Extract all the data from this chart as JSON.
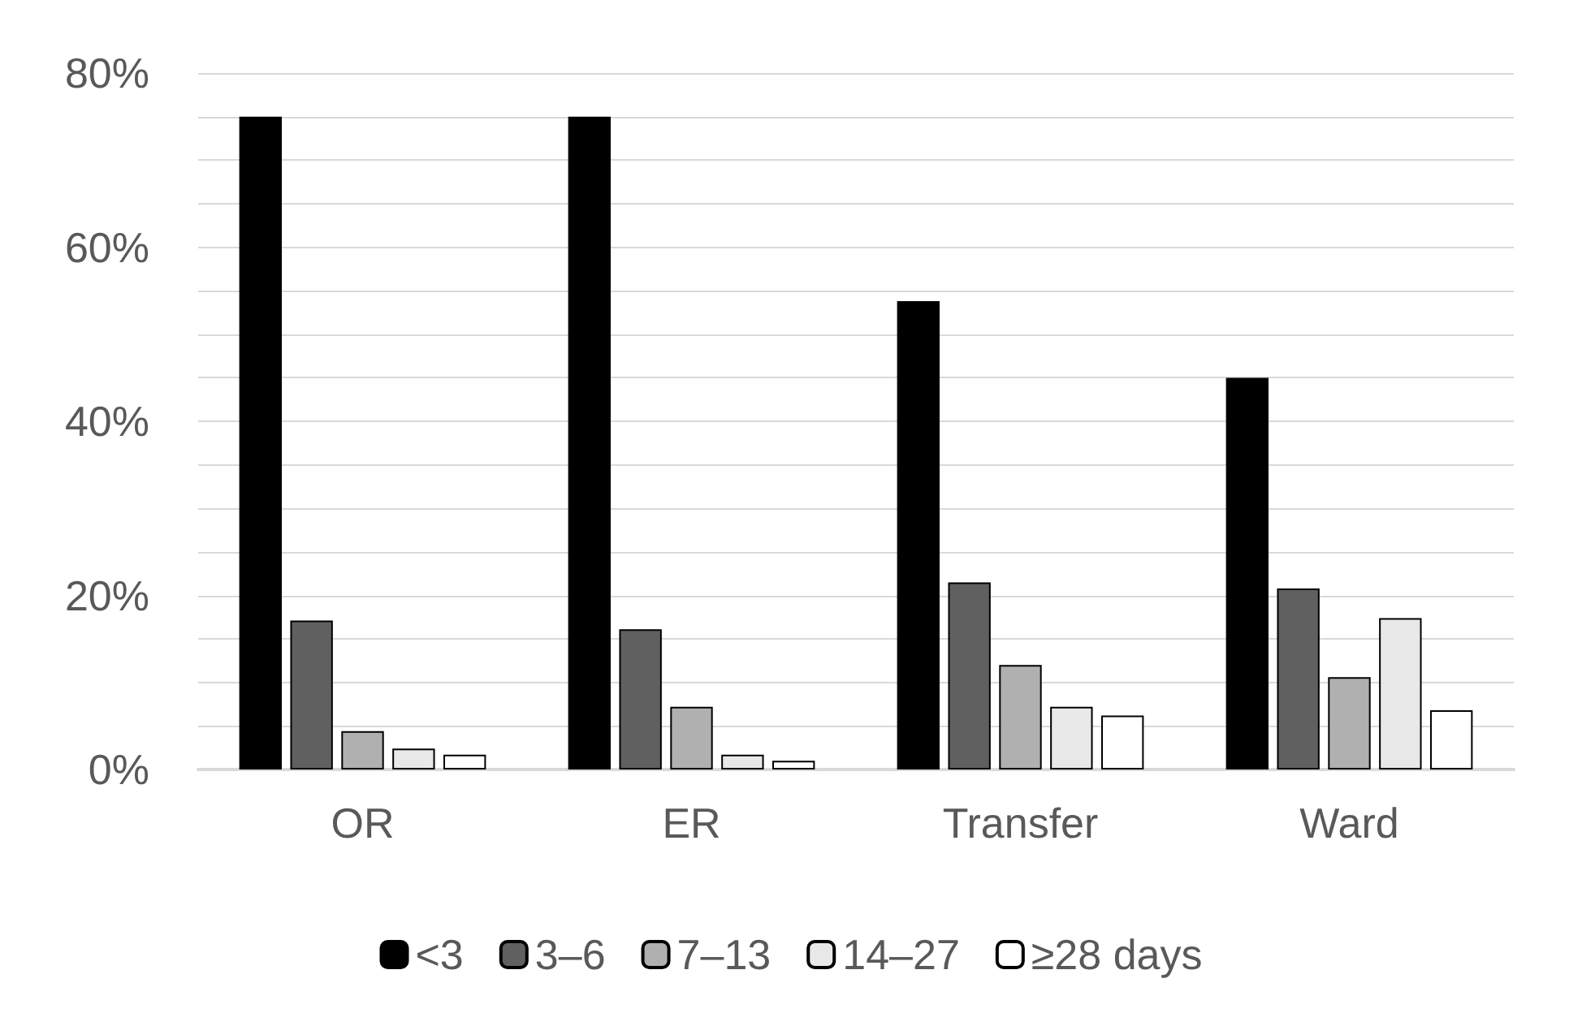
{
  "chart_data": {
    "type": "bar",
    "categories": [
      "OR",
      "ER",
      "Transfer",
      "Ward"
    ],
    "series": [
      {
        "name": "<3",
        "color": "#000000",
        "values": [
          75,
          75,
          53.8,
          45
        ]
      },
      {
        "name": "3–6",
        "color": "#606060",
        "values": [
          17.1,
          16.1,
          21.5,
          20.8
        ]
      },
      {
        "name": "7–13",
        "color": "#b0b0b0",
        "values": [
          4.4,
          7.2,
          12,
          10.6
        ]
      },
      {
        "name": "14–27",
        "color": "#e8e8e8",
        "values": [
          2.4,
          1.7,
          7.2,
          17.4
        ]
      },
      {
        "name": "≥28 days",
        "color": "#ffffff",
        "values": [
          1.7,
          1,
          6.2,
          6.8
        ]
      }
    ],
    "ylim": [
      0,
      80
    ],
    "yticks": [
      {
        "value": 0,
        "label": "0%"
      },
      {
        "value": 5,
        "label": null
      },
      {
        "value": 10,
        "label": null
      },
      {
        "value": 15,
        "label": null
      },
      {
        "value": 20,
        "label": "20%"
      },
      {
        "value": 25,
        "label": null
      },
      {
        "value": 30,
        "label": null
      },
      {
        "value": 35,
        "label": null
      },
      {
        "value": 40,
        "label": "40%"
      },
      {
        "value": 45,
        "label": null
      },
      {
        "value": 50,
        "label": null
      },
      {
        "value": 55,
        "label": null
      },
      {
        "value": 60,
        "label": "60%"
      },
      {
        "value": 65,
        "label": null
      },
      {
        "value": 70,
        "label": null
      },
      {
        "value": 75,
        "label": null
      },
      {
        "value": 80,
        "label": "80%"
      }
    ],
    "grid": "y",
    "legend": "bottom"
  }
}
